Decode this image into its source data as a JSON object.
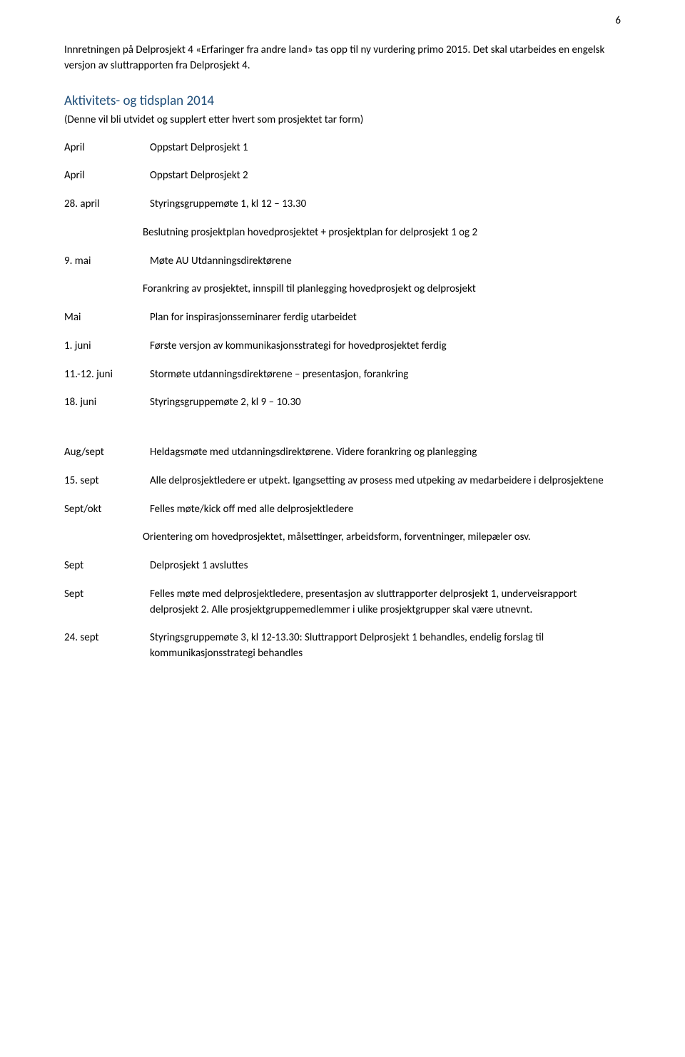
{
  "page_number": "6",
  "intro": "Innretningen på Delprosjekt 4 «Erfaringer fra andre land» tas opp til ny vurdering primo 2015. Det skal utarbeides en engelsk versjon av sluttrapporten fra Delprosjekt 4.",
  "section": {
    "heading": "Aktivitets- og tidsplan 2014",
    "sub": "(Denne vil bli utvidet og supplert etter hvert som prosjektet tar form)"
  },
  "rows": [
    {
      "date": "April",
      "desc": "Oppstart Delprosjekt 1"
    },
    {
      "date": "April",
      "desc": "Oppstart Delprosjekt 2"
    },
    {
      "date": "28. april",
      "desc": "Styringsgruppemøte 1, kl 12 – 13.30"
    }
  ],
  "indented1": "Beslutning prosjektplan hovedprosjektet + prosjektplan for delprosjekt 1 og 2",
  "rows2": [
    {
      "date": "9. mai",
      "desc": "Møte AU Utdanningsdirektørene"
    }
  ],
  "indented2": "Forankring av prosjektet, innspill til planlegging hovedprosjekt og delprosjekt",
  "rows3": [
    {
      "date": "Mai",
      "desc": "Plan for inspirasjonsseminarer ferdig utarbeidet"
    },
    {
      "date": "1. juni",
      "desc": "Første versjon av kommunikasjonsstrategi for hovedprosjektet ferdig"
    },
    {
      "date": "11.-12. juni",
      "desc": "Stormøte utdanningsdirektørene – presentasjon, forankring"
    },
    {
      "date": "18. juni",
      "desc": "Styringsgruppemøte 2, kl 9 – 10.30"
    }
  ],
  "rows4": [
    {
      "date": "Aug/sept",
      "desc": "Heldagsmøte med utdanningsdirektørene. Videre forankring og planlegging"
    },
    {
      "date": "15. sept",
      "desc": "Alle delprosjektledere er utpekt. Igangsetting av prosess med utpeking av medarbeidere i delprosjektene"
    },
    {
      "date": "Sept/okt",
      "desc": "Felles møte/kick off med alle delprosjektledere"
    }
  ],
  "indented3": "Orientering om hovedprosjektet, målsettinger, arbeidsform, forventninger, milepæler osv.",
  "rows5": [
    {
      "date": "Sept",
      "desc": "Delprosjekt 1 avsluttes"
    },
    {
      "date": "Sept",
      "desc": "Felles møte med delprosjektledere, presentasjon av sluttrapporter delprosjekt 1, underveisrapport delprosjekt 2. Alle prosjektgruppemedlemmer i ulike prosjektgrupper skal være utnevnt."
    },
    {
      "date": "24. sept",
      "desc": "Styringsgruppemøte 3, kl 12-13.30: Sluttrapport Delprosjekt 1 behandles, endelig forslag til kommunikasjonsstrategi behandles"
    }
  ]
}
